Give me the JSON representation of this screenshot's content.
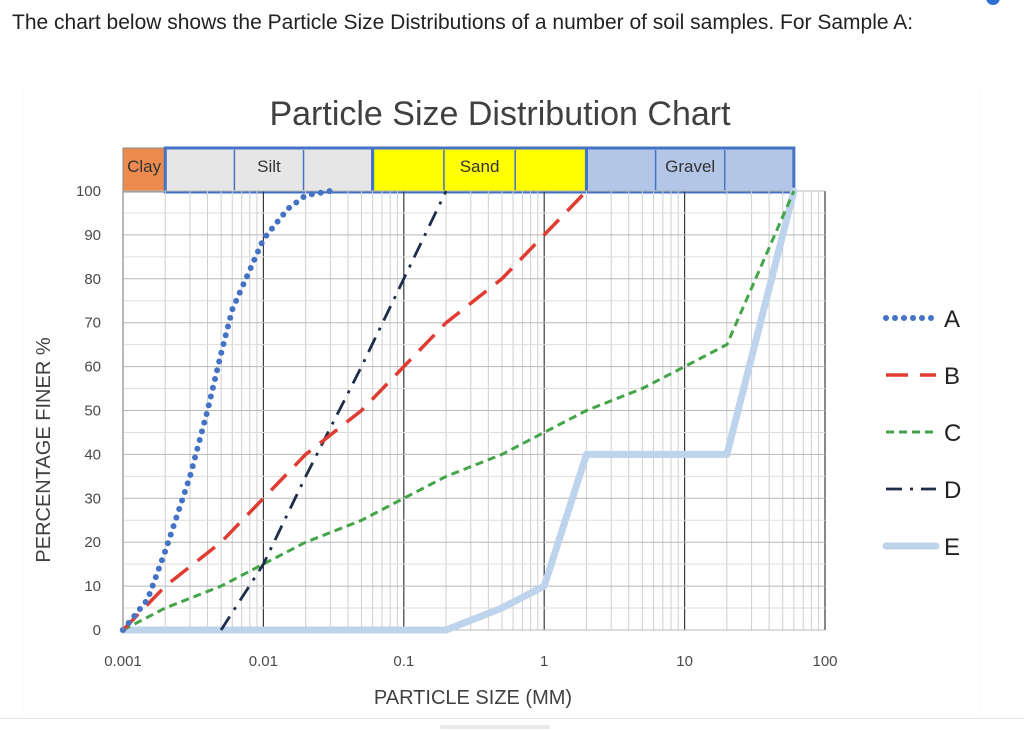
{
  "question": {
    "text": "The chart below shows the Particle Size Distributions of a number of soil samples. For Sample A:"
  },
  "icons": {
    "corner": "gear-icon"
  },
  "colors": {
    "A": "#4472c4",
    "B": "#e03c31",
    "C": "#43a547",
    "D": "#1f2d4a",
    "E": "#bed3ec",
    "clay_band": "#ed8b4f",
    "silt_band": "#e6e6e6",
    "sand_band": "#ffff00",
    "gravel_band": "#b4c6e7",
    "band_border": "#4472c4"
  },
  "chart_data": {
    "type": "line",
    "title": "Particle Size Distribution Chart",
    "xlabel": "PARTICLE SIZE (MM)",
    "ylabel": "PERCENTAGE FINER %",
    "x_scale": "log",
    "xlim": [
      0.001,
      100
    ],
    "ylim": [
      0,
      100
    ],
    "x_ticks": [
      {
        "value": 0.001,
        "label": "0.001"
      },
      {
        "value": 0.01,
        "label": "0.01"
      },
      {
        "value": 0.1,
        "label": "0.1"
      },
      {
        "value": 1,
        "label": "1"
      },
      {
        "value": 10,
        "label": "10"
      },
      {
        "value": 100,
        "label": "100"
      }
    ],
    "y_ticks": [
      0,
      10,
      20,
      30,
      40,
      50,
      60,
      70,
      80,
      90,
      100
    ],
    "grid": true,
    "legend_position": "right",
    "soil_bands": [
      {
        "label": "Clay",
        "from": 0.001,
        "to": 0.002
      },
      {
        "label": "Silt",
        "from": 0.002,
        "to": 0.06
      },
      {
        "label": "Sand",
        "from": 0.06,
        "to": 2
      },
      {
        "label": "Gravel",
        "from": 2,
        "to": 60
      }
    ],
    "series": [
      {
        "name": "A",
        "style": "dotted",
        "x": [
          0.001,
          0.0015,
          0.002,
          0.003,
          0.004,
          0.005,
          0.006,
          0.008,
          0.01,
          0.015,
          0.02,
          0.03
        ],
        "y": [
          0,
          7,
          18,
          35,
          50,
          63,
          73,
          82,
          89,
          96,
          99,
          100
        ]
      },
      {
        "name": "B",
        "style": "dashed",
        "x": [
          0.001,
          0.002,
          0.005,
          0.01,
          0.02,
          0.05,
          0.1,
          0.2,
          0.5,
          1,
          2
        ],
        "y": [
          0,
          10,
          20,
          30,
          40,
          50,
          60,
          70,
          80,
          90,
          100
        ]
      },
      {
        "name": "C",
        "style": "short-dash",
        "x": [
          0.001,
          0.002,
          0.005,
          0.01,
          0.02,
          0.05,
          0.1,
          0.2,
          0.5,
          1,
          2,
          5,
          10,
          20,
          60
        ],
        "y": [
          0,
          5,
          10,
          15,
          20,
          25,
          30,
          35,
          40,
          45,
          50,
          55,
          60,
          65,
          100
        ]
      },
      {
        "name": "D",
        "style": "dash-dot",
        "x": [
          0.005,
          0.01,
          0.02,
          0.05,
          0.1,
          0.2
        ],
        "y": [
          0,
          15,
          35,
          60,
          80,
          100
        ]
      },
      {
        "name": "E",
        "style": "solid-thick",
        "x": [
          0.001,
          0.1,
          0.2,
          0.5,
          1,
          2,
          20,
          60
        ],
        "y": [
          0,
          0,
          0,
          5,
          10,
          40,
          40,
          100
        ]
      }
    ]
  }
}
